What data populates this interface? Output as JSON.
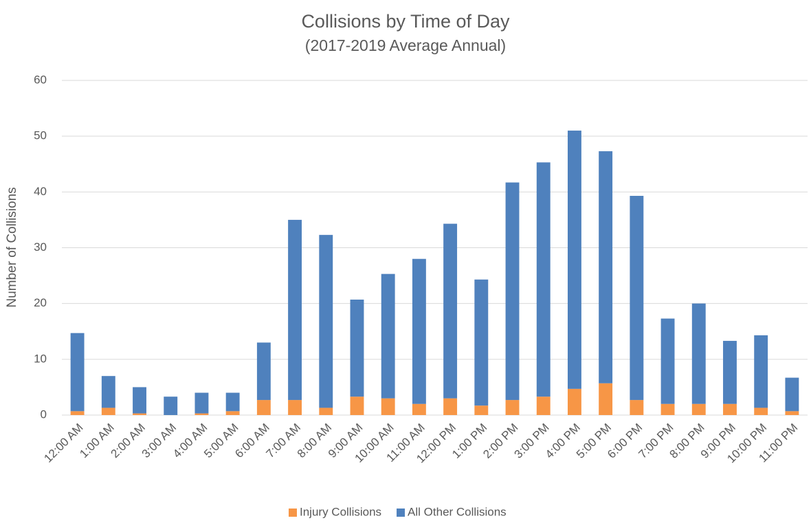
{
  "chart_data": {
    "type": "stacked_bar",
    "title": "Collisions by Time of Day",
    "subtitle": "(2017-2019 Average Annual)",
    "y_label": "Number of Collisions",
    "categories": [
      "12:00 AM",
      "1:00 AM",
      "2:00 AM",
      "3:00 AM",
      "4:00 AM",
      "5:00 AM",
      "6:00 AM",
      "7:00 AM",
      "8:00 AM",
      "9:00 AM",
      "10:00 AM",
      "11:00 AM",
      "12:00 PM",
      "1:00 PM",
      "2:00 PM",
      "3:00 PM",
      "4:00 PM",
      "5:00 PM",
      "6:00 PM",
      "7:00 PM",
      "8:00 PM",
      "9:00 PM",
      "10:00 PM",
      "11:00 PM"
    ],
    "series": [
      {
        "name": "Injury Collisions",
        "color": "#f79646",
        "values": [
          0.7,
          1.3,
          0.3,
          0.0,
          0.3,
          0.7,
          2.7,
          2.7,
          1.3,
          3.3,
          3.0,
          2.0,
          3.0,
          1.7,
          2.7,
          3.3,
          4.7,
          5.7,
          2.7,
          2.0,
          2.0,
          2.0,
          1.3,
          0.7
        ]
      },
      {
        "name": "All Other Collisions",
        "color": "#4f81bd",
        "values": [
          14.0,
          5.7,
          4.7,
          3.3,
          3.7,
          3.3,
          10.3,
          32.3,
          31.0,
          17.4,
          22.3,
          26.0,
          31.3,
          22.6,
          39.0,
          42.0,
          46.3,
          41.6,
          36.6,
          15.3,
          18.0,
          11.3,
          13.0,
          6.0
        ]
      }
    ],
    "ylim": [
      0,
      60
    ],
    "yticks": [
      0,
      10,
      20,
      30,
      40,
      50,
      60
    ],
    "grid": true,
    "legend": "bottom"
  }
}
